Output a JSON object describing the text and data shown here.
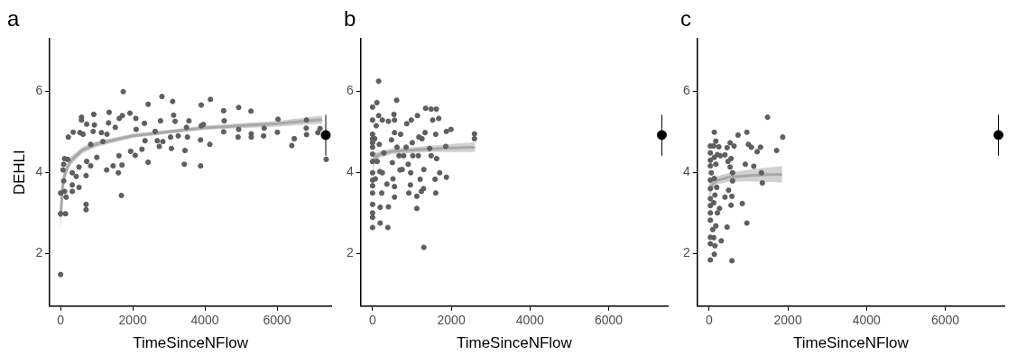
{
  "chart_data": [
    {
      "type": "scatter",
      "title": "a",
      "xlabel": "TimeSinceNFlow",
      "ylabel": "DEHLI",
      "xlim": [
        -300,
        7500
      ],
      "ylim": [
        0.7,
        7.3
      ],
      "xticks": [
        0,
        2000,
        4000,
        6000
      ],
      "yticks": [
        2,
        4,
        6
      ],
      "grid": false,
      "marker": "circle",
      "series": [
        {
          "type": "scatter",
          "color": "#5f5f5f",
          "x": [
            0,
            0,
            0,
            136,
            110,
            153,
            68,
            85,
            85,
            110,
            196,
            213,
            323,
            323,
            323,
            349,
            434,
            510,
            510,
            536,
            579,
            579,
            621,
            706,
            706,
            706,
            723,
            723,
            834,
            834,
            902,
            919,
            936,
            1004,
            1132,
            1174,
            1285,
            1277,
            1328,
            1345,
            1455,
            1515,
            1600,
            1617,
            1626,
            1685,
            1702,
            1736,
            1711,
            1923,
            1940,
            2068,
            2085,
            2094,
            2255,
            2323,
            2340,
            2426,
            2426,
            2621,
            2681,
            2736,
            2770,
            2809,
            2834,
            3047,
            3072,
            3106,
            3132,
            3174,
            3260,
            3430,
            3447,
            3489,
            3515,
            3557,
            3880,
            3880,
            3897,
            3897,
            3957,
            4136,
            4153,
            4519,
            4519,
            4536,
            4919,
            4936,
            4936,
            5277,
            5285,
            5285,
            5626,
            5643,
            6009,
            6026,
            6409,
            6477,
            6809,
            6817,
            6817,
            7132,
            7362,
            7191
          ],
          "values": [
            1.48,
            3.49,
            2.98,
            2.98,
            3.53,
            3.39,
            4.06,
            3.79,
            4.2,
            4.34,
            4.32,
            4.87,
            3.99,
            3.69,
            3.53,
            4.99,
            3.9,
            3.63,
            4.13,
            4.98,
            5.36,
            5.29,
            4.94,
            3.21,
            3.08,
            3.92,
            4.27,
            5.19,
            4.16,
            4.69,
            5.01,
            5.43,
            5.17,
            4.37,
            4.98,
            4.76,
            4.94,
            4.06,
            5.22,
            5.48,
            4.16,
            5.11,
            3.99,
            4.41,
            5.33,
            3.43,
            4.18,
            5.99,
            5.4,
            5.46,
            4.52,
            4.42,
            5.33,
            5.06,
            4.57,
            5.21,
            4.78,
            4.25,
            5.68,
            5.01,
            4.78,
            4.64,
            5.27,
            5.87,
            4.76,
            4.87,
            4.59,
            5.75,
            5.41,
            5.26,
            4.9,
            4.2,
            4.54,
            5.11,
            4.87,
            5.27,
            4.16,
            4.8,
            5.15,
            5.66,
            5.18,
            4.69,
            5.8,
            5.0,
            5.52,
            5.27,
            4.87,
            5.6,
            5.06,
            5.51,
            4.87,
            4.95,
            4.9,
            5.09,
            4.99,
            5.31,
            4.66,
            4.83,
            5.09,
            4.93,
            5.29,
            4.98,
            4.32,
            5.08
          ]
        },
        {
          "type": "line",
          "marker": "none",
          "color": "#a8a8a8",
          "x": [
            0,
            50,
            100,
            200,
            300,
            600,
            1000,
            1500,
            2000,
            3000,
            4000,
            5000,
            6000,
            7250
          ],
          "values": [
            2.9,
            3.6,
            3.9,
            4.15,
            4.3,
            4.55,
            4.7,
            4.8,
            4.9,
            5.0,
            5.1,
            5.15,
            5.2,
            5.3
          ],
          "lower": [
            2.55,
            3.4,
            3.75,
            4.05,
            4.2,
            4.47,
            4.63,
            4.74,
            4.85,
            4.95,
            5.05,
            5.09,
            5.13,
            5.2
          ],
          "upper": [
            3.2,
            3.8,
            4.05,
            4.25,
            4.4,
            4.63,
            4.77,
            4.86,
            4.95,
            5.05,
            5.15,
            5.21,
            5.27,
            5.4
          ]
        },
        {
          "type": "scatter",
          "color": "#000000",
          "x": [
            7350
          ],
          "values": [
            4.92
          ],
          "errors": [
            [
              4.41,
              5.42
            ]
          ]
        }
      ]
    },
    {
      "type": "scatter",
      "title": "b",
      "xlabel": "TimeSinceNFlow",
      "xlim": [
        -300,
        7500
      ],
      "ylim": [
        0.7,
        7.3
      ],
      "xticks": [
        0,
        2000,
        4000,
        6000
      ],
      "yticks": [
        2,
        4,
        6
      ],
      "grid": false,
      "marker": "circle",
      "series": [
        {
          "type": "scatter",
          "color": "#5f5f5f",
          "x": [
            155,
            109,
            0,
            0,
            0,
            0,
            0,
            0,
            0,
            0,
            0,
            0,
            0,
            0,
            0,
            0,
            0,
            0,
            54,
            70,
            93,
            116,
            155,
            171,
            186,
            194,
            194,
            233,
            248,
            248,
            287,
            364,
            388,
            403,
            403,
            481,
            504,
            519,
            543,
            558,
            558,
            558,
            612,
            558,
            620,
            674,
            698,
            713,
            752,
            791,
            853,
            868,
            907,
            922,
            961,
            969,
            984,
            1008,
            1023,
            1124,
            1124,
            1140,
            1163,
            1178,
            1209,
            1240,
            1256,
            1295,
            1302,
            1302,
            1333,
            1349,
            1450,
            1488,
            1488,
            1527,
            1589,
            1605,
            1605,
            1620,
            1628,
            1682,
            1705,
            1860,
            1876,
            1876,
            1992,
            2589,
            2589
          ],
          "values": [
            6.25,
            5.72,
            5.61,
            5.29,
            4.94,
            4.83,
            4.73,
            4.62,
            4.45,
            4.27,
            3.99,
            3.81,
            3.67,
            3.49,
            3.21,
            3.0,
            2.89,
            2.64,
            4.83,
            3.84,
            5.15,
            4.27,
            5.4,
            4.69,
            4.02,
            2.75,
            3.14,
            3.49,
            5.29,
            3.99,
            4.48,
            3.71,
            2.64,
            3.15,
            5.26,
            4.8,
            4.24,
            3.84,
            5.43,
            5.29,
            3.39,
            3.65,
            5.78,
            4.98,
            4.62,
            4.41,
            4.06,
            4.94,
            4.07,
            4.41,
            4.62,
            5.2,
            4.2,
            3.49,
            3.69,
            3.99,
            5.29,
            4.73,
            4.41,
            3.41,
            3.11,
            5.4,
            4.41,
            4.87,
            3.83,
            3.53,
            4.83,
            3.6,
            2.15,
            4.07,
            4.98,
            5.58,
            4.59,
            5.56,
            4.41,
            5.29,
            3.83,
            3.49,
            4.94,
            5.56,
            4.34,
            5.33,
            3.99,
            4.64,
            3.88,
            5.01,
            5.06,
            4.95,
            4.83
          ]
        },
        {
          "type": "line",
          "marker": "none",
          "color": "#a8a8a8",
          "x": [
            0,
            100,
            200,
            500,
            1000,
            1500,
            2000,
            2600
          ],
          "values": [
            4.25,
            4.4,
            4.45,
            4.52,
            4.55,
            4.58,
            4.6,
            4.62
          ],
          "lower": [
            4.05,
            4.3,
            4.37,
            4.45,
            4.48,
            4.5,
            4.5,
            4.5
          ],
          "upper": [
            4.45,
            4.5,
            4.53,
            4.59,
            4.62,
            4.66,
            4.7,
            4.74
          ]
        },
        {
          "type": "scatter",
          "color": "#000000",
          "x": [
            7350
          ],
          "values": [
            4.92
          ],
          "errors": [
            [
              4.41,
              5.42
            ]
          ]
        }
      ]
    },
    {
      "type": "scatter",
      "title": "c",
      "xlabel": "TimeSinceNFlow",
      "xlim": [
        -300,
        7500
      ],
      "ylim": [
        0.7,
        7.3
      ],
      "xticks": [
        0,
        2000,
        4000,
        6000
      ],
      "yticks": [
        2,
        4,
        6
      ],
      "grid": false,
      "marker": "circle",
      "series": [
        {
          "type": "scatter",
          "color": "#5f5f5f",
          "x": [
            31,
            579,
            131,
            31,
            147,
            309,
            31,
            116,
            93,
            170,
            456,
            958,
            31,
            31,
            209,
            263,
            31,
            116,
            556,
            842,
            402,
            579,
            31,
            147,
            494,
            31,
            193,
            595,
            31,
            131,
            595,
            54,
            1351,
            1328,
            919,
            1135,
            533,
            31,
            170,
            479,
            31,
            556,
            131,
            286,
            31,
            402,
            209,
            31,
            116,
            247,
            456,
            533,
            633,
            996,
            1073,
            1305,
            1220,
            1714,
            170,
            734,
            958,
            131,
            1483,
            1869
          ],
          "values": [
            1.84,
            1.82,
            1.98,
            2.24,
            2.19,
            2.31,
            2.4,
            2.39,
            2.59,
            2.68,
            2.65,
            2.75,
            2.82,
            3.0,
            3.0,
            3.11,
            3.18,
            3.25,
            3.19,
            3.23,
            3.39,
            3.41,
            3.35,
            3.44,
            3.56,
            3.6,
            3.63,
            3.79,
            3.81,
            3.85,
            3.99,
            3.99,
            3.74,
            3.99,
            4.2,
            4.15,
            4.13,
            4.16,
            4.2,
            4.27,
            4.3,
            4.34,
            4.37,
            4.41,
            4.48,
            4.43,
            4.44,
            4.65,
            4.65,
            4.63,
            4.61,
            4.73,
            4.65,
            4.69,
            4.62,
            4.62,
            4.51,
            4.54,
            4.77,
            4.92,
            4.99,
            4.99,
            5.36,
            4.87
          ]
        },
        {
          "type": "line",
          "marker": "none",
          "color": "#a8a8a8",
          "x": [
            0,
            100,
            200,
            500,
            1000,
            1400,
            1850
          ],
          "values": [
            3.55,
            3.72,
            3.8,
            3.88,
            3.92,
            3.94,
            3.95
          ],
          "lower": [
            3.35,
            3.6,
            3.7,
            3.77,
            3.78,
            3.77,
            3.75
          ],
          "upper": [
            3.75,
            3.84,
            3.9,
            3.99,
            4.06,
            4.11,
            4.15
          ]
        },
        {
          "type": "scatter",
          "color": "#000000",
          "x": [
            7350
          ],
          "values": [
            4.92
          ],
          "errors": [
            [
              4.41,
              5.42
            ]
          ]
        }
      ]
    }
  ]
}
